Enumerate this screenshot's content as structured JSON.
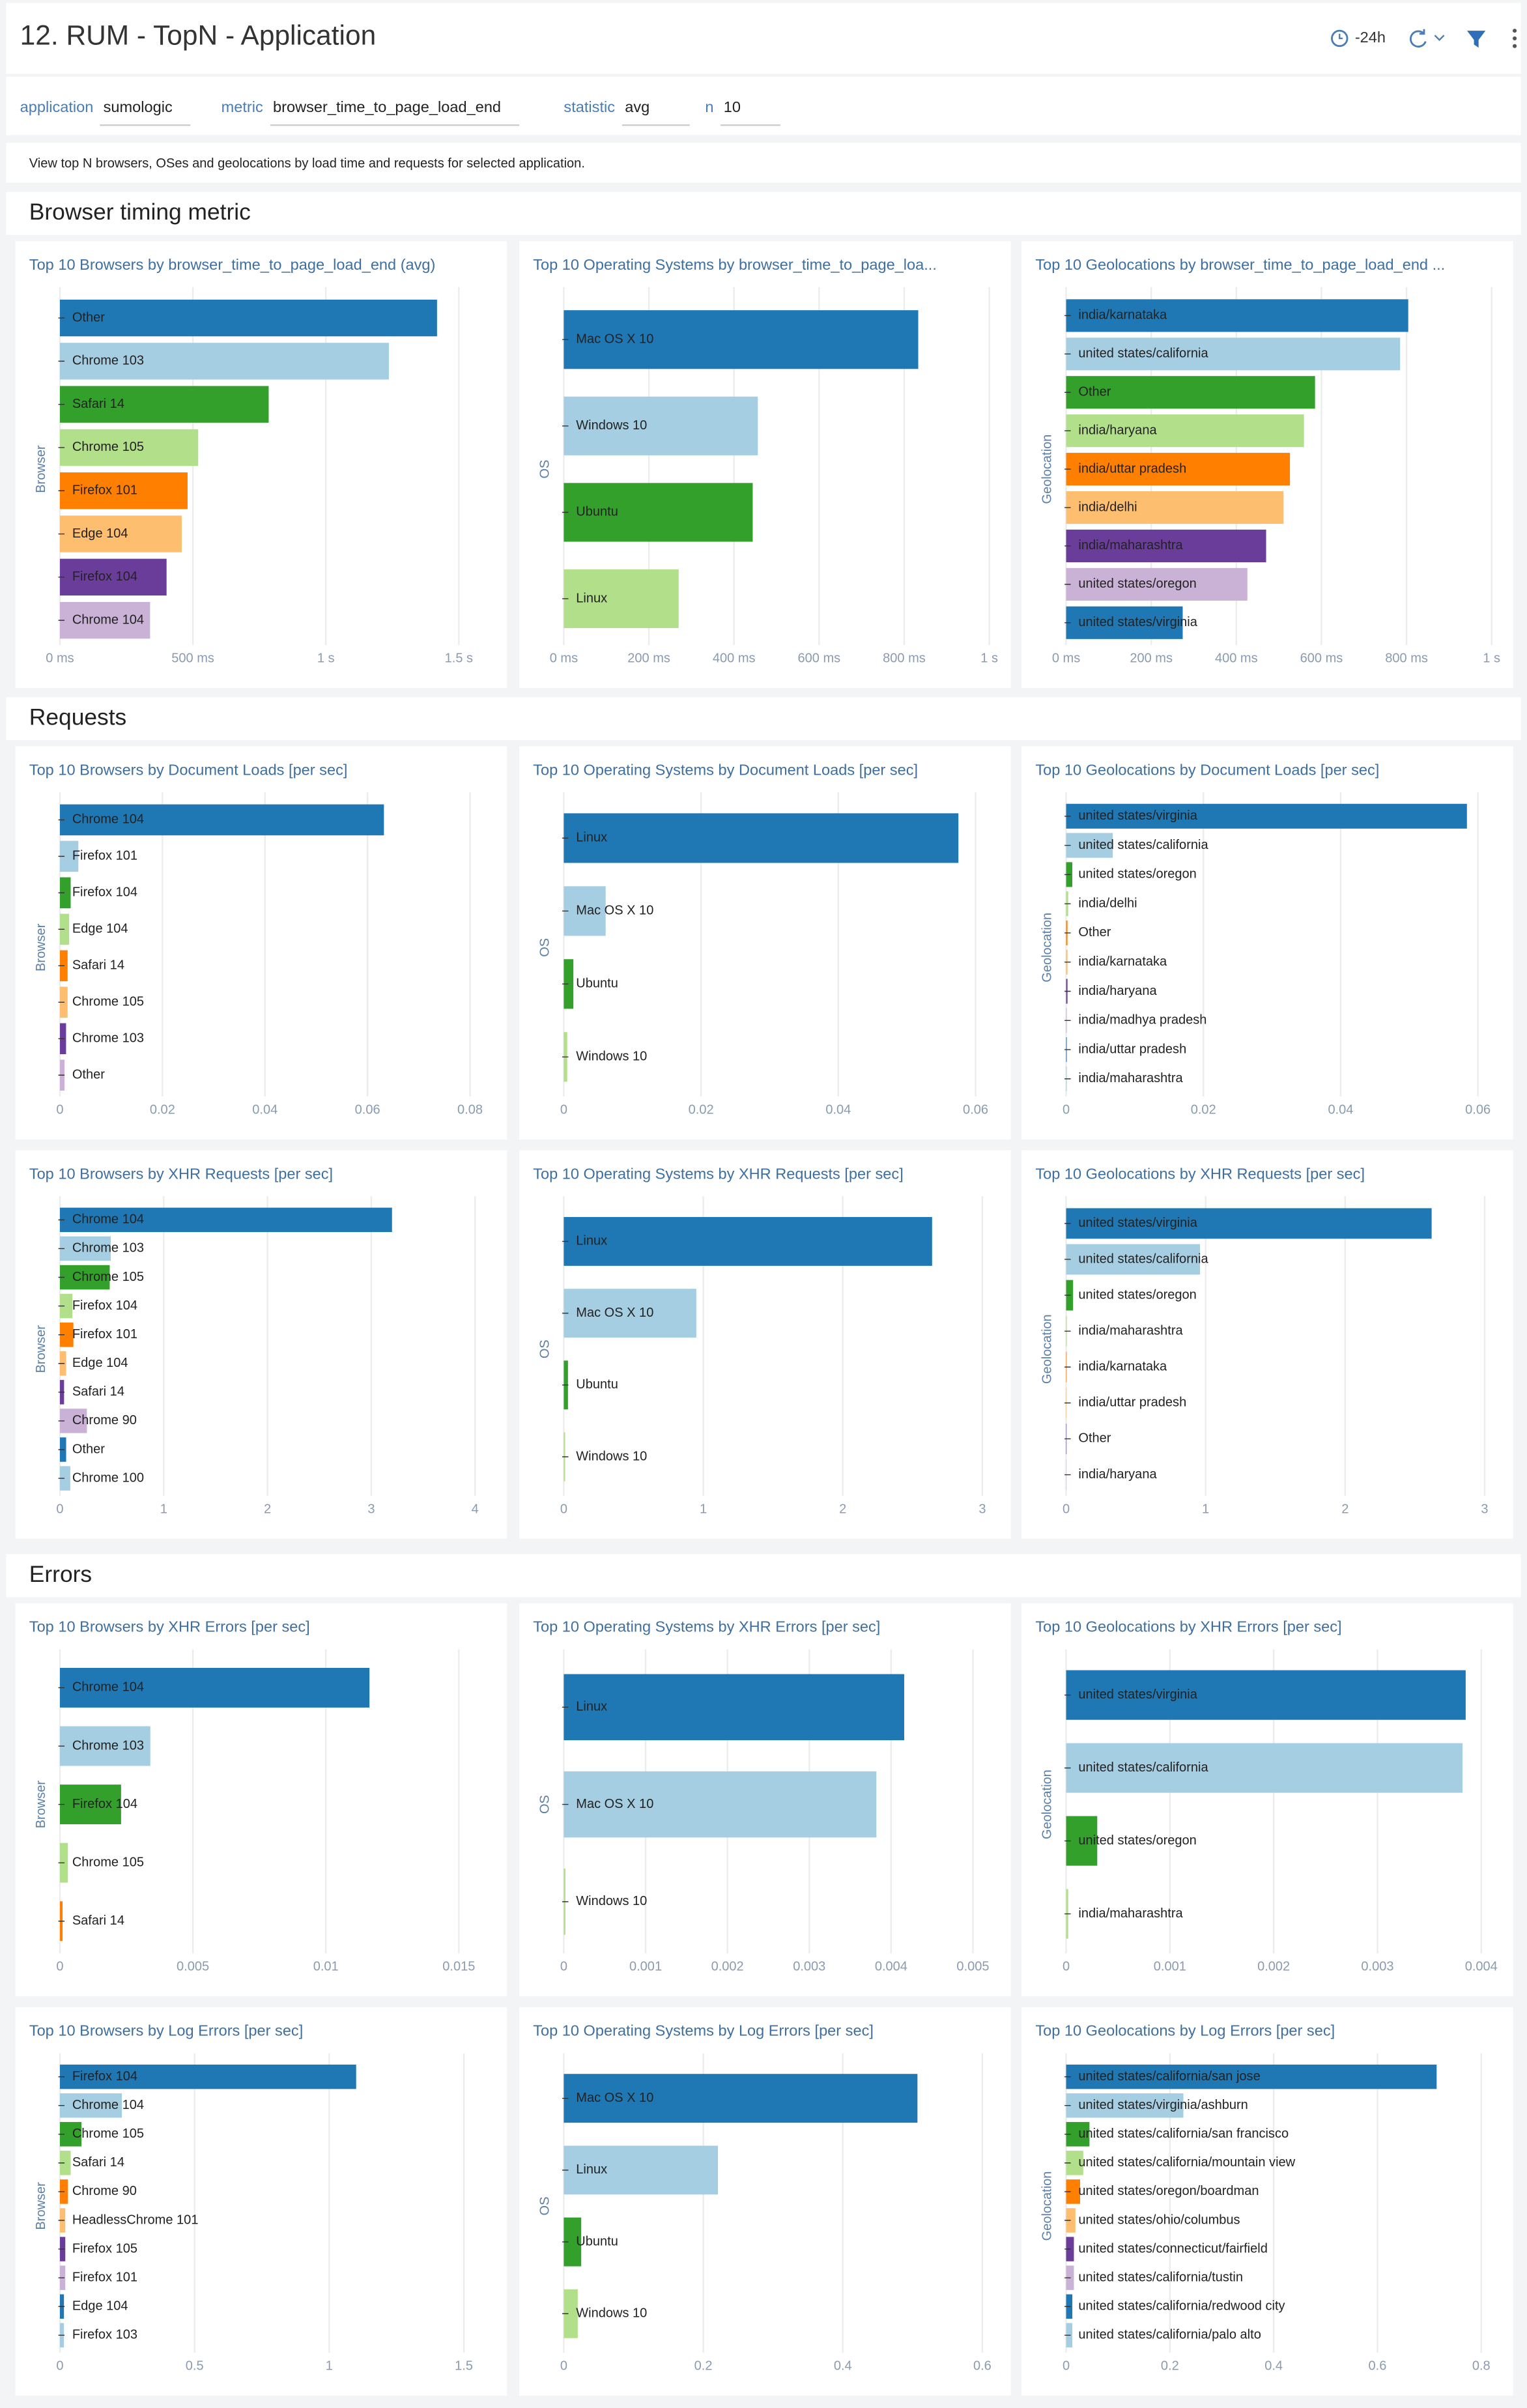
{
  "header": {
    "title": "12. RUM - TopN - Application",
    "time_range": "-24h"
  },
  "filters": [
    {
      "label": "application",
      "value": "sumologic"
    },
    {
      "label": "metric",
      "value": "browser_time_to_page_load_end"
    },
    {
      "label": "statistic",
      "value": "avg"
    },
    {
      "label": "n",
      "value": "10"
    }
  ],
  "description": "View top N browsers, OSes and geolocations by load time and requests for selected application.",
  "sections": [
    "Browser timing metric",
    "Requests",
    "Errors"
  ],
  "chart_data": [
    {
      "type": "bar",
      "horizontal": true,
      "grid": true,
      "title": "Top 10 Browsers by browser_time_to_page_load_end (avg)",
      "y_label": "Browser",
      "categories": [
        "Other",
        "Chrome 103",
        "Safari 14",
        "Chrome 105",
        "Firefox 101",
        "Edge 104",
        "Firefox 104",
        "Chrome 104"
      ],
      "values": [
        1418,
        1237,
        785,
        520,
        480,
        458,
        401,
        339
      ],
      "colors": [
        "#1f78b4",
        "#a6cee3",
        "#33a02c",
        "#b2df8a",
        "#ff7f00",
        "#fdbf6f",
        "#6a3d9a",
        "#cab2d6"
      ],
      "xlim": [
        0,
        1600
      ],
      "xticks": [
        {
          "value": 0,
          "label": "0 ms"
        },
        {
          "value": 500,
          "label": "500 ms"
        },
        {
          "value": 1000,
          "label": "1 s"
        },
        {
          "value": 1500,
          "label": "1.5 s"
        }
      ]
    },
    {
      "type": "bar",
      "horizontal": true,
      "grid": true,
      "title": "Top 10 Operating Systems by browser_time_to_page_loa...",
      "y_label": "OS",
      "categories": [
        "Mac OS X 10",
        "Windows 10",
        "Ubuntu",
        "Linux"
      ],
      "values": [
        833,
        456,
        444,
        270
      ],
      "colors": [
        "#1f78b4",
        "#a6cee3",
        "#33a02c",
        "#b2df8a"
      ],
      "xlim": [
        0,
        1000
      ],
      "xticks": [
        {
          "value": 0,
          "label": "0 ms"
        },
        {
          "value": 200,
          "label": "200 ms"
        },
        {
          "value": 400,
          "label": "400 ms"
        },
        {
          "value": 600,
          "label": "600 ms"
        },
        {
          "value": 800,
          "label": "800 ms"
        },
        {
          "value": 1000,
          "label": "1 s"
        }
      ]
    },
    {
      "type": "bar",
      "horizontal": true,
      "grid": true,
      "title": "Top 10 Geolocations by browser_time_to_page_load_end ...",
      "y_label": "Geolocation",
      "categories": [
        "india/karnataka",
        "united states/california",
        "Other",
        "india/haryana",
        "india/uttar pradesh",
        "india/delhi",
        "india/maharashtra",
        "united states/oregon",
        "united states/virginia"
      ],
      "values": [
        804,
        785,
        585,
        559,
        526,
        511,
        470,
        426,
        274
      ],
      "colors": [
        "#1f78b4",
        "#a6cee3",
        "#33a02c",
        "#b2df8a",
        "#ff7f00",
        "#fdbf6f",
        "#6a3d9a",
        "#cab2d6",
        "#1f78b4"
      ],
      "xlim": [
        0,
        1000
      ],
      "xticks": [
        {
          "value": 0,
          "label": "0 ms"
        },
        {
          "value": 200,
          "label": "200 ms"
        },
        {
          "value": 400,
          "label": "400 ms"
        },
        {
          "value": 600,
          "label": "600 ms"
        },
        {
          "value": 800,
          "label": "800 ms"
        },
        {
          "value": 1000,
          "label": "1 s"
        }
      ]
    },
    {
      "type": "bar",
      "horizontal": true,
      "grid": true,
      "title": "Top 10 Browsers by Document Loads [per sec]",
      "y_label": "Browser",
      "categories": [
        "Chrome 104",
        "Firefox 101",
        "Firefox 104",
        "Edge 104",
        "Safari 14",
        "Chrome 105",
        "Chrome 103",
        "Other"
      ],
      "values": [
        0.0632,
        0.0036,
        0.0021,
        0.0018,
        0.0015,
        0.0015,
        0.0012,
        0.0009
      ],
      "colors": [
        "#1f78b4",
        "#a6cee3",
        "#33a02c",
        "#b2df8a",
        "#ff7f00",
        "#fdbf6f",
        "#6a3d9a",
        "#cab2d6"
      ],
      "xlim": [
        0,
        0.083
      ],
      "xticks": [
        0,
        0.02,
        0.04,
        0.06,
        0.08
      ]
    },
    {
      "type": "bar",
      "horizontal": true,
      "grid": true,
      "title": "Top 10 Operating Systems by Document Loads [per sec]",
      "y_label": "OS",
      "categories": [
        "Linux",
        "Mac OS X 10",
        "Ubuntu",
        "Windows 10"
      ],
      "values": [
        0.0575,
        0.0061,
        0.0014,
        0.0005
      ],
      "colors": [
        "#1f78b4",
        "#a6cee3",
        "#33a02c",
        "#b2df8a"
      ],
      "xlim": [
        0,
        0.062
      ],
      "xticks": [
        0,
        0.02,
        0.04,
        0.06
      ]
    },
    {
      "type": "bar",
      "horizontal": true,
      "grid": true,
      "title": "Top 10 Geolocations by Document Loads [per sec]",
      "y_label": "Geolocation",
      "categories": [
        "united states/virginia",
        "united states/california",
        "united states/oregon",
        "india/delhi",
        "Other",
        "india/karnataka",
        "india/haryana",
        "india/madhya pradesh",
        "india/uttar pradesh",
        "india/maharashtra"
      ],
      "values": [
        0.0584,
        0.0068,
        0.0009,
        0.0003,
        0.0002,
        0.0002,
        0.0002,
        0.0001,
        0.0001,
        0.0001
      ],
      "colors": [
        "#1f78b4",
        "#a6cee3",
        "#33a02c",
        "#b2df8a",
        "#ff7f00",
        "#fdbf6f",
        "#6a3d9a",
        "#cab2d6",
        "#1f78b4",
        "#a6cee3"
      ],
      "xlim": [
        0,
        0.062
      ],
      "xticks": [
        0,
        0.02,
        0.04,
        0.06
      ]
    },
    {
      "type": "bar",
      "horizontal": true,
      "grid": true,
      "title": "Top 10 Browsers by XHR Requests [per sec]",
      "y_label": "Browser",
      "categories": [
        "Chrome 104",
        "Chrome 103",
        "Chrome 105",
        "Firefox 104",
        "Firefox 101",
        "Edge 104",
        "Safari 14",
        "Chrome 90",
        "Other",
        "Chrome 100"
      ],
      "values": [
        3.2,
        0.49,
        0.48,
        0.12,
        0.13,
        0.06,
        0.04,
        0.26,
        0.06,
        0.1
      ],
      "colors": [
        "#1f78b4",
        "#a6cee3",
        "#33a02c",
        "#b2df8a",
        "#ff7f00",
        "#fdbf6f",
        "#6a3d9a",
        "#cab2d6",
        "#1f78b4",
        "#a6cee3"
      ],
      "xlim": [
        0,
        4.1
      ],
      "xticks": [
        0,
        1,
        2,
        3,
        4
      ]
    },
    {
      "type": "bar",
      "horizontal": true,
      "grid": true,
      "title": "Top 10 Operating Systems by XHR Requests [per sec]",
      "y_label": "OS",
      "categories": [
        "Linux",
        "Mac OS X 10",
        "Ubuntu",
        "Windows 10"
      ],
      "values": [
        2.64,
        0.95,
        0.03,
        0.01
      ],
      "colors": [
        "#1f78b4",
        "#a6cee3",
        "#33a02c",
        "#b2df8a"
      ],
      "xlim": [
        0,
        3.05
      ],
      "xticks": [
        0,
        1,
        2,
        3
      ]
    },
    {
      "type": "bar",
      "horizontal": true,
      "grid": true,
      "title": "Top 10 Geolocations by XHR Requests [per sec]",
      "y_label": "Geolocation",
      "categories": [
        "united states/virginia",
        "united states/california",
        "united states/oregon",
        "india/maharashtra",
        "india/karnataka",
        "india/uttar pradesh",
        "Other",
        "india/haryana"
      ],
      "values": [
        2.62,
        0.96,
        0.05,
        0.005,
        0.004,
        0.003,
        0.003,
        0.002
      ],
      "colors": [
        "#1f78b4",
        "#a6cee3",
        "#33a02c",
        "#b2df8a",
        "#ff7f00",
        "#fdbf6f",
        "#6a3d9a",
        "#cab2d6"
      ],
      "xlim": [
        0,
        3.05
      ],
      "xticks": [
        0,
        1,
        2,
        3
      ]
    },
    {
      "type": "bar",
      "horizontal": true,
      "grid": true,
      "title": "Top 10 Browsers by XHR Errors [per sec]",
      "y_label": "Browser",
      "categories": [
        "Chrome 104",
        "Chrome 103",
        "Firefox 104",
        "Chrome 105",
        "Safari 14"
      ],
      "values": [
        0.01164,
        0.0034,
        0.0023,
        0.0003,
        0.0001
      ],
      "colors": [
        "#1f78b4",
        "#a6cee3",
        "#33a02c",
        "#b2df8a",
        "#ff7f00"
      ],
      "xlim": [
        0,
        0.016
      ],
      "xticks": [
        0,
        0.005,
        0.01,
        0.015
      ]
    },
    {
      "type": "bar",
      "horizontal": true,
      "grid": true,
      "title": "Top 10 Operating Systems by XHR Errors [per sec]",
      "y_label": "OS",
      "categories": [
        "Linux",
        "Mac OS X 10",
        "Windows 10"
      ],
      "values": [
        0.00416,
        0.00382,
        2e-05
      ],
      "colors": [
        "#1f78b4",
        "#a6cee3",
        "#b2df8a"
      ],
      "xlim": [
        0,
        0.0052
      ],
      "xticks": [
        0,
        0.001,
        0.002,
        0.003,
        0.004,
        0.005
      ]
    },
    {
      "type": "bar",
      "horizontal": true,
      "grid": true,
      "title": "Top 10 Geolocations by XHR Errors [per sec]",
      "y_label": "Geolocation",
      "categories": [
        "united states/virginia",
        "united states/california",
        "united states/oregon",
        "india/maharashtra"
      ],
      "values": [
        0.00385,
        0.00382,
        0.0003,
        2e-05
      ],
      "colors": [
        "#1f78b4",
        "#a6cee3",
        "#33a02c",
        "#b2df8a"
      ],
      "xlim": [
        0,
        0.0041
      ],
      "xticks": [
        0,
        0.001,
        0.002,
        0.003,
        0.004
      ]
    },
    {
      "type": "bar",
      "horizontal": true,
      "grid": true,
      "title": "Top 10 Browsers by Log Errors [per sec]",
      "y_label": "Browser",
      "categories": [
        "Firefox 104",
        "Chrome 104",
        "Chrome 105",
        "Safari 14",
        "Chrome 90",
        "HeadlessChrome 101",
        "Firefox 105",
        "Firefox 101",
        "Edge 104",
        "Firefox 103"
      ],
      "values": [
        1.1,
        0.23,
        0.08,
        0.04,
        0.03,
        0.02,
        0.02,
        0.02,
        0.015,
        0.015
      ],
      "colors": [
        "#1f78b4",
        "#a6cee3",
        "#33a02c",
        "#b2df8a",
        "#ff7f00",
        "#fdbf6f",
        "#6a3d9a",
        "#cab2d6",
        "#1f78b4",
        "#a6cee3"
      ],
      "xlim": [
        0,
        1.58
      ],
      "xticks": [
        0,
        0.5,
        1,
        1.5
      ]
    },
    {
      "type": "bar",
      "horizontal": true,
      "grid": true,
      "title": "Top 10 Operating Systems by Log Errors [per sec]",
      "y_label": "OS",
      "categories": [
        "Mac OS X 10",
        "Linux",
        "Ubuntu",
        "Windows 10"
      ],
      "values": [
        0.507,
        0.221,
        0.025,
        0.02
      ],
      "colors": [
        "#1f78b4",
        "#a6cee3",
        "#33a02c",
        "#b2df8a"
      ],
      "xlim": [
        0,
        0.61
      ],
      "xticks": [
        0,
        0.2,
        0.4,
        0.6
      ]
    },
    {
      "type": "bar",
      "horizontal": true,
      "grid": true,
      "title": "Top 10 Geolocations by Log Errors [per sec]",
      "y_label": "Geolocation",
      "categories": [
        "united states/california/san jose",
        "united states/virginia/ashburn",
        "united states/california/san francisco",
        "united states/california/mountain view",
        "united states/oregon/boardman",
        "united states/ohio/columbus",
        "united states/connecticut/fairfield",
        "united states/california/tustin",
        "united states/california/redwood city",
        "united states/california/palo alto"
      ],
      "values": [
        0.714,
        0.226,
        0.045,
        0.033,
        0.027,
        0.018,
        0.015,
        0.015,
        0.012,
        0.012
      ],
      "colors": [
        "#1f78b4",
        "#a6cee3",
        "#33a02c",
        "#b2df8a",
        "#ff7f00",
        "#fdbf6f",
        "#6a3d9a",
        "#cab2d6",
        "#1f78b4",
        "#a6cee3"
      ],
      "xlim": [
        0,
        0.82
      ],
      "xticks": [
        0,
        0.2,
        0.4,
        0.6,
        0.8
      ]
    }
  ]
}
